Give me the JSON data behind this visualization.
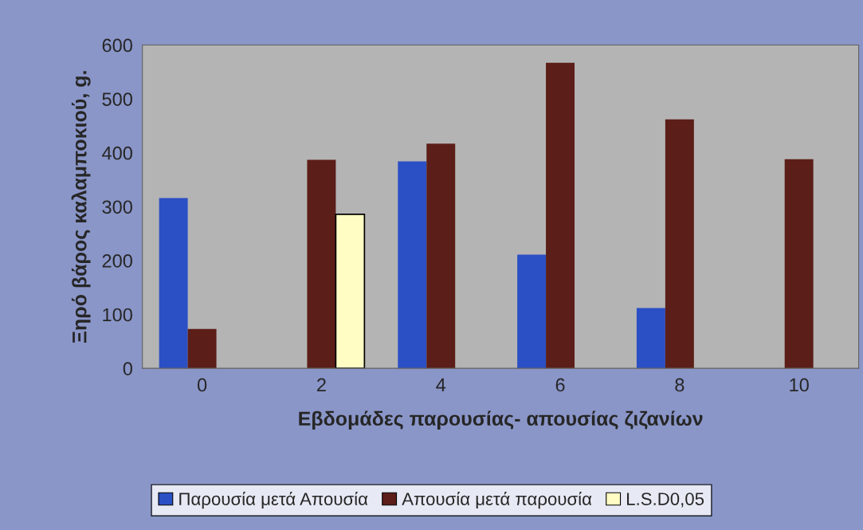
{
  "chart_data": {
    "type": "bar",
    "xlabel": "Εβδομάδες παρουσίας- απουσίας ζιζανίων",
    "ylabel": "Ξηρό βάρος καλαμποκιού, g.",
    "categories": [
      "0",
      "2",
      "4",
      "6",
      "8",
      "10"
    ],
    "series": [
      {
        "name": "Παρουσία μετά Απουσία",
        "color": "#2b4fc4",
        "values": [
          316,
          0,
          384,
          211,
          112,
          0
        ]
      },
      {
        "name": "Απουσία μετά παρουσία",
        "color": "#5c1e18",
        "values": [
          73,
          387,
          417,
          567,
          462,
          388
        ]
      },
      {
        "name": "L.S.D0,05",
        "color": "#fffcc4",
        "values": [
          null,
          286,
          null,
          null,
          null,
          null
        ]
      }
    ],
    "ylim": [
      0,
      600
    ],
    "yticks": [
      0,
      100,
      200,
      300,
      400,
      500,
      600
    ],
    "grid": false,
    "legend": "bottom"
  }
}
